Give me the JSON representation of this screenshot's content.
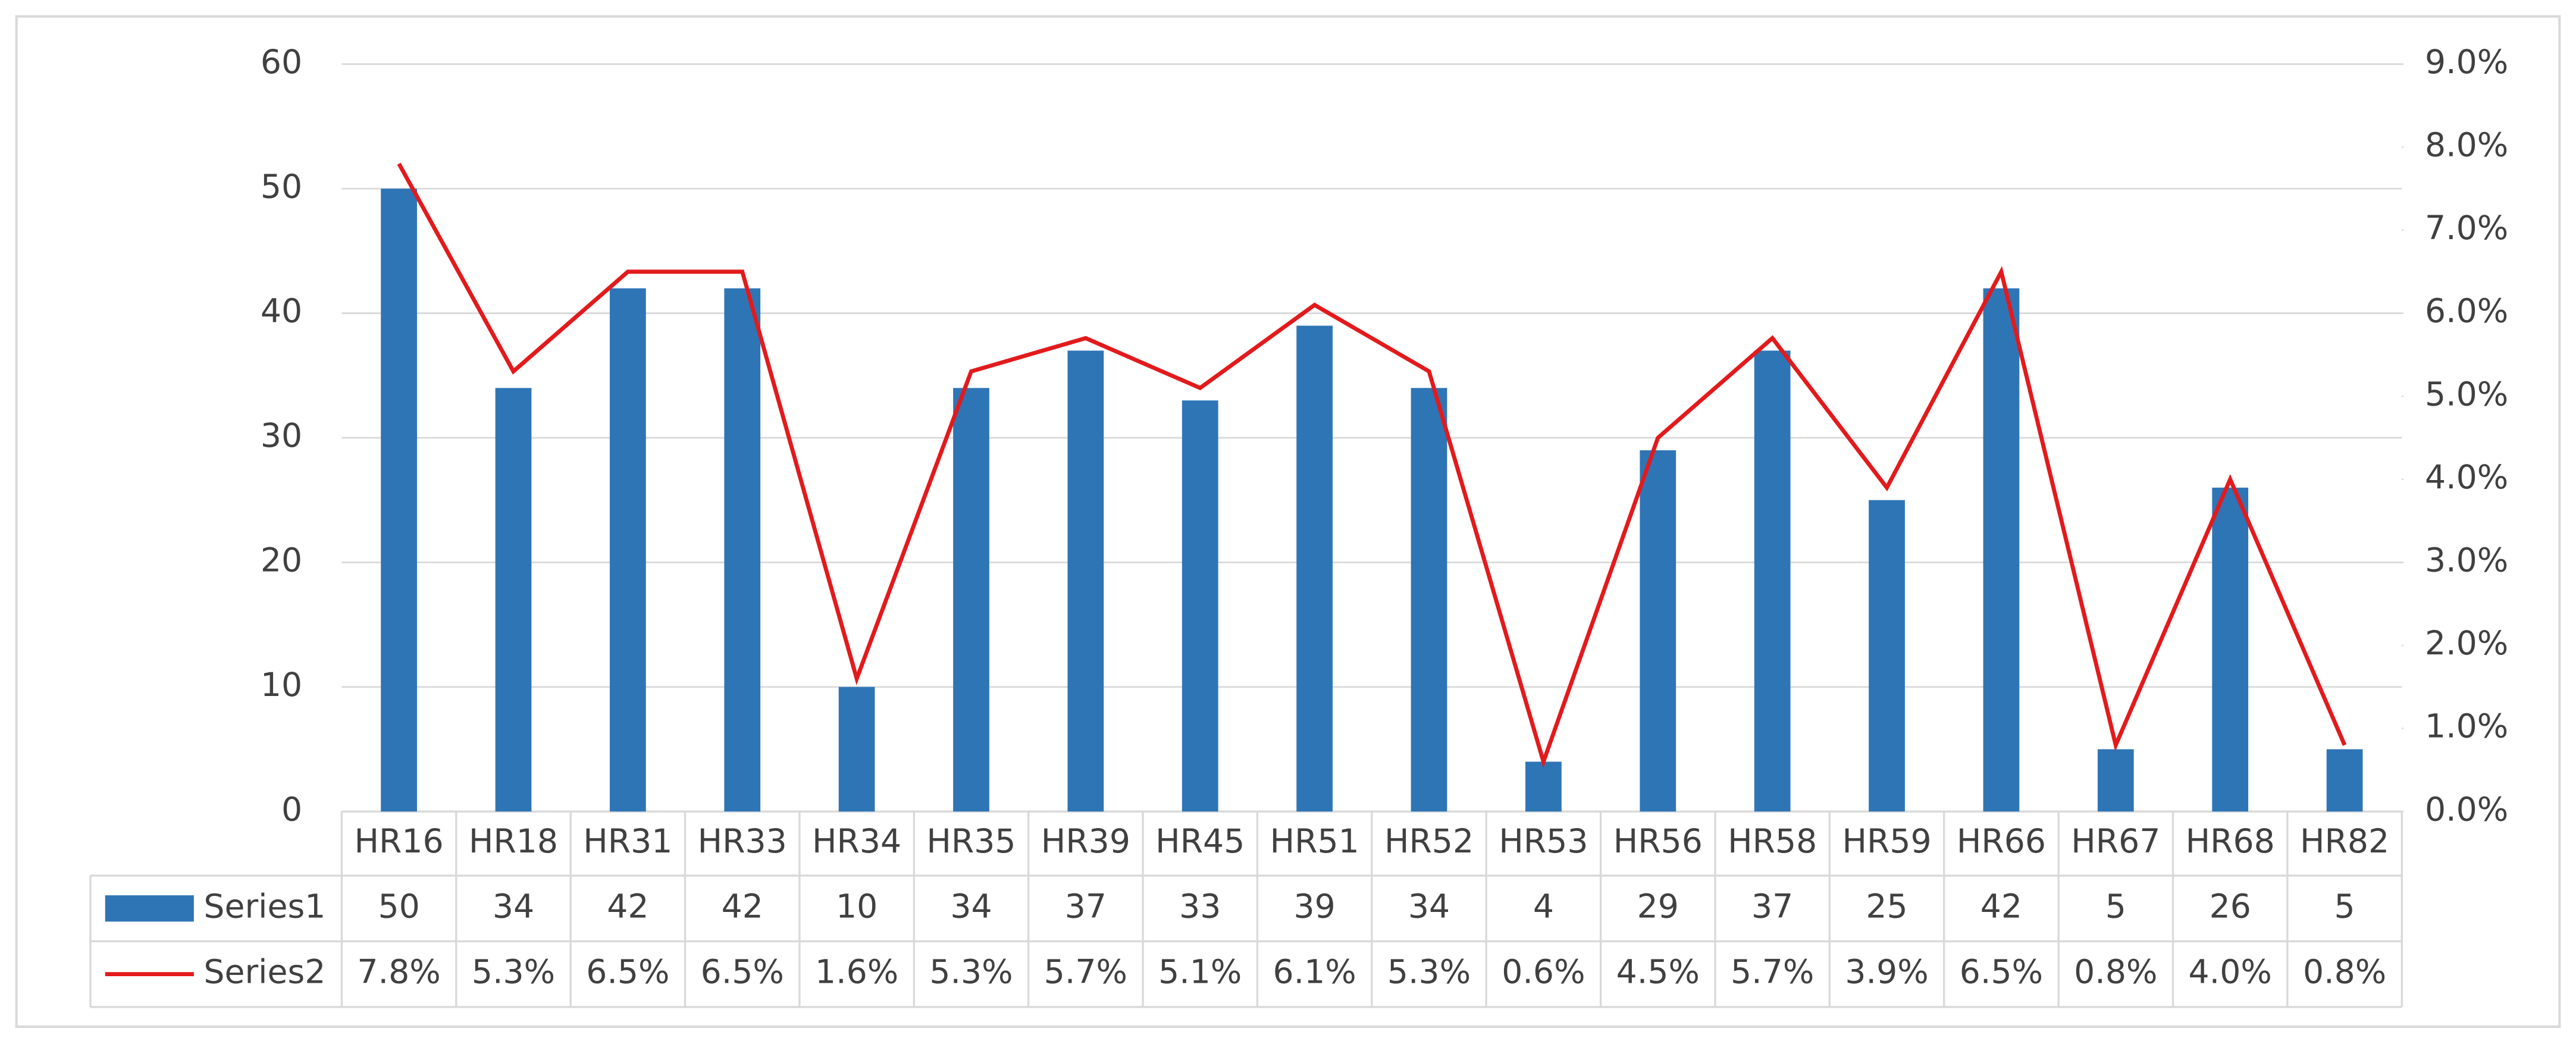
{
  "chart_data": {
    "type": "bar-line",
    "categories": [
      "HR16",
      "HR18",
      "HR31",
      "HR33",
      "HR34",
      "HR35",
      "HR39",
      "HR45",
      "HR51",
      "HR52",
      "HR53",
      "HR56",
      "HR58",
      "HR59",
      "HR66",
      "HR67",
      "HR68",
      "HR82"
    ],
    "series": [
      {
        "name": "Series1",
        "type": "bar",
        "color": "#2e75b6",
        "values": [
          50,
          34,
          42,
          42,
          10,
          34,
          37,
          33,
          39,
          34,
          4,
          29,
          37,
          25,
          42,
          5,
          26,
          5
        ]
      },
      {
        "name": "Series2",
        "type": "line",
        "axis": "y2",
        "color": "#e31a1c",
        "values": [
          7.8,
          5.3,
          6.5,
          6.5,
          1.6,
          5.3,
          5.7,
          5.1,
          6.1,
          5.3,
          0.6,
          4.5,
          5.7,
          3.9,
          6.5,
          0.8,
          4.0,
          0.8
        ],
        "value_labels": [
          "7.8%",
          "5.3%",
          "6.5%",
          "6.5%",
          "1.6%",
          "5.3%",
          "5.7%",
          "5.1%",
          "6.1%",
          "5.3%",
          "0.6%",
          "4.5%",
          "5.7%",
          "3.9%",
          "6.5%",
          "0.8%",
          "4.0%",
          "0.8%"
        ]
      }
    ],
    "ylim": [
      0,
      60
    ],
    "yticks": [
      0,
      10,
      20,
      30,
      40,
      50,
      60
    ],
    "y2lim": [
      0,
      9
    ],
    "y2ticks": [
      {
        "value": 0,
        "label": "0.0%"
      },
      {
        "value": 1,
        "label": "1.0%"
      },
      {
        "value": 2,
        "label": "2.0%"
      },
      {
        "value": 3,
        "label": "3.0%"
      },
      {
        "value": 4,
        "label": "4.0%"
      },
      {
        "value": 5,
        "label": "5.0%"
      },
      {
        "value": 6,
        "label": "6.0%"
      },
      {
        "value": 7,
        "label": "7.0%"
      },
      {
        "value": 8,
        "label": "8.0%"
      },
      {
        "value": 9,
        "label": "9.0%"
      }
    ],
    "grid": true,
    "data_table": true
  }
}
